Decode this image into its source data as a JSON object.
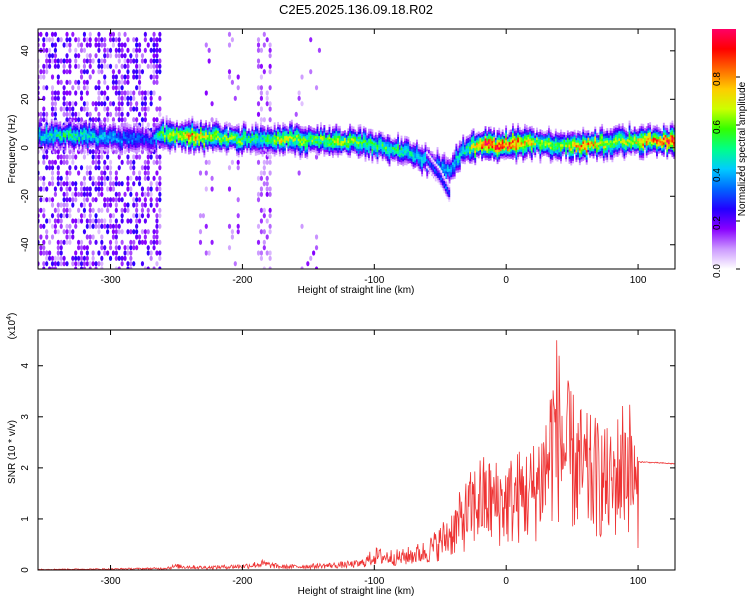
{
  "figure": {
    "title": "C2E5.2025.136.09.18.R02"
  },
  "chart_data": [
    {
      "type": "heatmap",
      "xlabel": "Height of straight line (km)",
      "ylabel": "Frequency (Hz)",
      "xlim": [
        -355,
        128
      ],
      "ylim": [
        -50,
        49
      ],
      "xticks": [
        -300,
        -200,
        -100,
        0,
        100
      ],
      "yticks": [
        -40,
        -20,
        0,
        20,
        40
      ],
      "colorbar": {
        "label": "Normalized spectral amplitude",
        "range": [
          0,
          1
        ],
        "ticks": [
          0.0,
          0.2,
          0.4,
          0.6,
          0.8
        ],
        "tick_labels": [
          "0.0",
          "0.2",
          "0.4",
          "0.6",
          "0.8"
        ],
        "colormap": [
          "#ffffff",
          "#cc99ff",
          "#8800ff",
          "#2200ff",
          "#0066ff",
          "#00ccff",
          "#00ff88",
          "#33ff00",
          "#ccff00",
          "#ffcc00",
          "#ff6600",
          "#ff0000",
          "#ff0066"
        ]
      },
      "ridge": [
        {
          "x": -355,
          "f": 5,
          "a": 0.45
        },
        {
          "x": -330,
          "f": 5,
          "a": 0.55
        },
        {
          "x": -300,
          "f": 4,
          "a": 0.4
        },
        {
          "x": -270,
          "f": 3,
          "a": 0.3
        },
        {
          "x": -260,
          "f": 5,
          "a": 0.6
        },
        {
          "x": -240,
          "f": 5,
          "a": 0.8
        },
        {
          "x": -220,
          "f": 4,
          "a": 0.65
        },
        {
          "x": -200,
          "f": 3.5,
          "a": 0.6
        },
        {
          "x": -185,
          "f": 3,
          "a": 0.5
        },
        {
          "x": -170,
          "f": 4,
          "a": 0.7
        },
        {
          "x": -150,
          "f": 3,
          "a": 0.6
        },
        {
          "x": -130,
          "f": 3,
          "a": 0.65
        },
        {
          "x": -110,
          "f": 2,
          "a": 0.6
        },
        {
          "x": -90,
          "f": 0,
          "a": 0.55
        },
        {
          "x": -75,
          "f": -2,
          "a": 0.5
        },
        {
          "x": -60,
          "f": -5,
          "a": 0.45
        },
        {
          "x": -45,
          "f": -10,
          "a": 0.4
        },
        {
          "x": -30,
          "f": 0,
          "a": 0.5
        },
        {
          "x": -20,
          "f": 1,
          "a": 0.9
        },
        {
          "x": 0,
          "f": 1,
          "a": 0.95
        },
        {
          "x": 20,
          "f": 2,
          "a": 0.7
        },
        {
          "x": 40,
          "f": 1,
          "a": 0.6
        },
        {
          "x": 60,
          "f": 1,
          "a": 0.85
        },
        {
          "x": 80,
          "f": 2,
          "a": 0.6
        },
        {
          "x": 95,
          "f": 3,
          "a": 0.7
        },
        {
          "x": 128,
          "f": 3,
          "a": 0.95
        }
      ],
      "branch": [
        {
          "x": -60,
          "f": -5
        },
        {
          "x": -50,
          "f": -12
        },
        {
          "x": -42,
          "f": -20
        }
      ]
    },
    {
      "type": "line",
      "xlabel": "Height of straight line (km)",
      "ylabel": "SNR (10 * v/v)",
      "scale_label": "(x10",
      "scale_exp": "4",
      "scale_close": ")",
      "xlim": [
        -355,
        128
      ],
      "ylim": [
        0,
        4.7
      ],
      "xticks": [
        -300,
        -200,
        -100,
        0,
        100
      ],
      "yticks": [
        0,
        1,
        2,
        3,
        4
      ],
      "series": [
        {
          "color": "#ee3333",
          "envelope": [
            {
              "x": -355,
              "y": 0.02
            },
            {
              "x": -300,
              "y": 0.03
            },
            {
              "x": -260,
              "y": 0.05
            },
            {
              "x": -250,
              "y": 0.12
            },
            {
              "x": -230,
              "y": 0.08
            },
            {
              "x": -200,
              "y": 0.12
            },
            {
              "x": -185,
              "y": 0.2
            },
            {
              "x": -170,
              "y": 0.1
            },
            {
              "x": -150,
              "y": 0.12
            },
            {
              "x": -130,
              "y": 0.15
            },
            {
              "x": -110,
              "y": 0.2
            },
            {
              "x": -100,
              "y": 0.45
            },
            {
              "x": -80,
              "y": 0.4
            },
            {
              "x": -60,
              "y": 0.6
            },
            {
              "x": -50,
              "y": 0.9
            },
            {
              "x": -40,
              "y": 1.3
            },
            {
              "x": -30,
              "y": 1.8
            },
            {
              "x": -20,
              "y": 2.3
            },
            {
              "x": -10,
              "y": 2.2
            },
            {
              "x": 0,
              "y": 2.2
            },
            {
              "x": 10,
              "y": 2.4
            },
            {
              "x": 20,
              "y": 2.5
            },
            {
              "x": 30,
              "y": 3.3
            },
            {
              "x": 38,
              "y": 4.7
            },
            {
              "x": 45,
              "y": 3.8
            },
            {
              "x": 60,
              "y": 3.1
            },
            {
              "x": 70,
              "y": 3.0
            },
            {
              "x": 80,
              "y": 2.7
            },
            {
              "x": 90,
              "y": 3.6
            },
            {
              "x": 95,
              "y": 3.3
            },
            {
              "x": 100,
              "y": 2.12
            },
            {
              "x": 128,
              "y": 2.08
            }
          ]
        }
      ]
    }
  ]
}
